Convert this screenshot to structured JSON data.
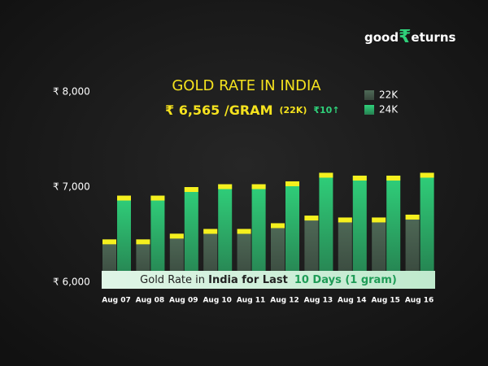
{
  "logo": {
    "prefix": "good",
    "mark": "₹",
    "suffix": "eturns"
  },
  "chart_data": {
    "type": "bar",
    "title": "GOLD RATE IN INDIA",
    "subtitle": "₹ 6,565 /GRAM",
    "subtitle_purity": "(22K)",
    "change": "₹10↑",
    "caption": [
      "Gold Rate in ",
      "India for Last",
      "10 Days (1 gram)"
    ],
    "categories": [
      "Aug 07",
      "Aug 08",
      "Aug 09",
      "Aug 10",
      "Aug 11",
      "Aug 12",
      "Aug 13",
      "Aug 14",
      "Aug 15",
      "Aug 16"
    ],
    "series": [
      {
        "name": "22K",
        "color": "#4f6a57",
        "values": [
          6450,
          6450,
          6510,
          6560,
          6560,
          6620,
          6700,
          6680,
          6680,
          6710
        ]
      },
      {
        "name": "24K",
        "color": "#2fd07a",
        "values": [
          6910,
          6910,
          7000,
          7030,
          7030,
          7060,
          7150,
          7120,
          7120,
          7150
        ]
      }
    ],
    "ylim": [
      6000,
      8000
    ],
    "yticks": [
      {
        "value": 6000,
        "label": "₹ 6,000"
      },
      {
        "value": 7000,
        "label": "₹ 7,000"
      },
      {
        "value": 8000,
        "label": "₹ 8,000"
      }
    ],
    "cap_color": "#f5f01e",
    "legend": "top-right"
  }
}
